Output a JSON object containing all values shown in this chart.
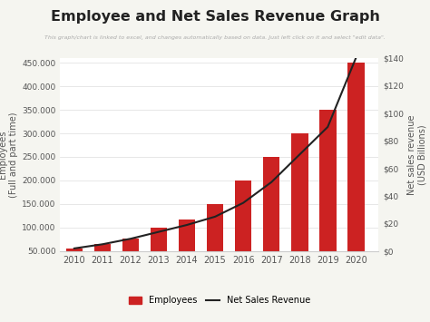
{
  "title": "Employee and Net Sales Revenue Graph",
  "subtitle": "This graph/chart is linked to excel, and changes automatically based on data. Just left click on it and select \"edit data\".",
  "years": [
    2010,
    2011,
    2012,
    2013,
    2014,
    2015,
    2016,
    2017,
    2018,
    2019,
    2020
  ],
  "employees": [
    56000,
    65000,
    76000,
    100000,
    117000,
    150000,
    200000,
    250000,
    300000,
    350000,
    450000
  ],
  "net_sales": [
    2,
    5,
    9,
    14,
    19,
    25,
    35,
    50,
    70,
    90,
    140
  ],
  "bar_color": "#cc2222",
  "line_color": "#222222",
  "ylabel_left": "Employees\n(Full and part time)",
  "ylabel_right": "Net sales revenue\n(USD Billions)",
  "ylim_left": [
    50000,
    460000
  ],
  "ylim_right": [
    0,
    140
  ],
  "yticks_left": [
    50000,
    100000,
    150000,
    200000,
    250000,
    300000,
    350000,
    400000,
    450000
  ],
  "ytick_labels_left": [
    "50.000",
    "100.000",
    "150.000",
    "200.000",
    "250.000",
    "300.000",
    "350.000",
    "400.000",
    "450.000"
  ],
  "yticks_right": [
    0,
    20,
    40,
    60,
    80,
    100,
    120,
    140
  ],
  "ytick_labels_right": [
    "$0",
    "$20",
    "$40",
    "$60",
    "$80",
    "$100",
    "$120",
    "$140"
  ],
  "bg_color": "#f5f5f0",
  "plot_bg_color": "#ffffff",
  "legend_employees": "Employees",
  "legend_net_sales": "Net Sales Revenue"
}
